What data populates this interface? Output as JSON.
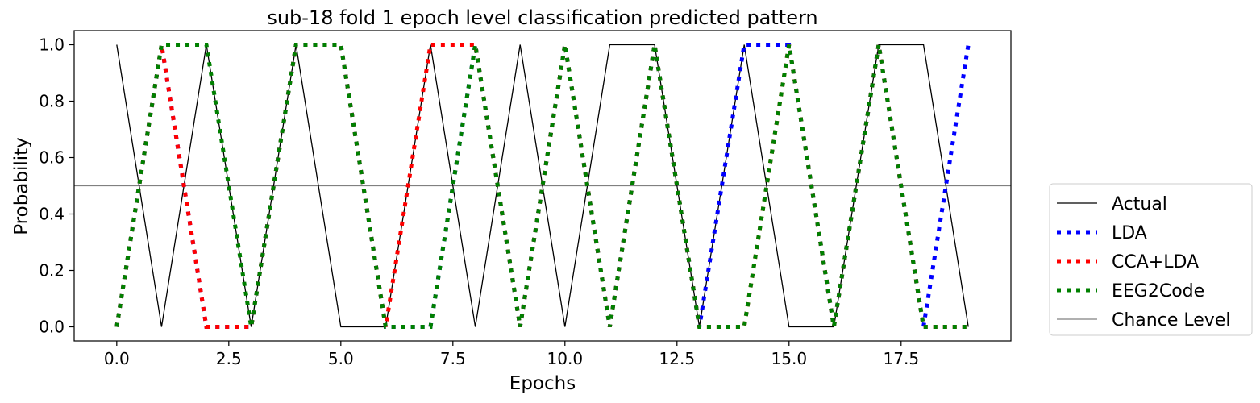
{
  "chart_data": {
    "type": "line",
    "title": "sub-18 fold 1 epoch level classification predicted pattern",
    "xlabel": "Epochs",
    "ylabel": "Probability",
    "xlim": [
      -0.95,
      19.95
    ],
    "ylim": [
      -0.05,
      1.05
    ],
    "xticks": [
      0,
      2.5,
      5,
      7.5,
      10,
      12.5,
      15,
      17.5
    ],
    "xtick_labels": [
      "0.0",
      "2.5",
      "5.0",
      "7.5",
      "10.0",
      "12.5",
      "15.0",
      "17.5"
    ],
    "yticks": [
      0,
      0.2,
      0.4,
      0.6,
      0.8,
      1.0
    ],
    "ytick_labels": [
      "0.0",
      "0.2",
      "0.4",
      "0.6",
      "0.8",
      "1.0"
    ],
    "grid": false,
    "legend_position": "outside-right-bottom",
    "x": [
      0,
      1,
      2,
      3,
      4,
      5,
      6,
      7,
      8,
      9,
      10,
      11,
      12,
      13,
      14,
      15,
      16,
      17,
      18,
      19
    ],
    "series": [
      {
        "name": "Actual",
        "color": "#000000",
        "style": "solid",
        "values": [
          1,
          0,
          1,
          0,
          1,
          0,
          0,
          1,
          0,
          1,
          0,
          1,
          1,
          0,
          1,
          0,
          0,
          1,
          1,
          0
        ]
      },
      {
        "name": "LDA",
        "color": "#0000ff",
        "style": "dotted",
        "values": [
          0,
          1,
          0,
          0,
          1,
          1,
          0,
          0,
          1,
          0,
          1,
          0,
          1,
          0,
          1,
          1,
          0,
          1,
          0,
          1
        ]
      },
      {
        "name": "CCA+LDA",
        "color": "#ff0000",
        "style": "dotted",
        "values": [
          0,
          1,
          0,
          0,
          1,
          1,
          0,
          1,
          1,
          0,
          1,
          0,
          1,
          0,
          0,
          1,
          0,
          1,
          0,
          0
        ]
      },
      {
        "name": "EEG2Code",
        "color": "#008000",
        "style": "dotted",
        "values": [
          0,
          1,
          1,
          0,
          1,
          1,
          0,
          0,
          1,
          0,
          1,
          0,
          1,
          0,
          0,
          1,
          0,
          1,
          0,
          0
        ]
      }
    ],
    "reference_line": {
      "name": "Chance Level",
      "value": 0.5,
      "color": "#808080"
    }
  }
}
